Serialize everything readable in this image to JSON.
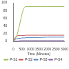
{
  "chart_data": {
    "type": "line",
    "x_label": "Time (Minutes)",
    "x": [
      0,
      100,
      200,
      300,
      400,
      500,
      600,
      700,
      800,
      1000,
      1500,
      2000,
      2500,
      3000
    ],
    "series": [
      {
        "name": "P-S1",
        "color": "#9bbb59",
        "values": [
          0,
          5,
          15,
          30,
          50,
          70,
          85,
          90,
          90,
          90,
          90,
          90,
          90,
          90
        ]
      },
      {
        "name": "P-S2",
        "color": "#c0504d",
        "values": [
          0,
          10,
          14,
          15,
          15,
          15,
          15,
          16,
          16,
          16,
          16,
          16,
          16,
          16
        ]
      },
      {
        "name": "P-S3",
        "color": "#4f81bd",
        "values": [
          0,
          5,
          7,
          8,
          8,
          9,
          9,
          9,
          10,
          10,
          10,
          11,
          11,
          11
        ]
      },
      {
        "name": "P-S4",
        "color": "#8064a2",
        "values": [
          0,
          1,
          1,
          1,
          2,
          2,
          2,
          2,
          2,
          2,
          2,
          2,
          2,
          2
        ]
      }
    ],
    "xlim": [
      0,
      3000
    ],
    "xticks": [
      0,
      500,
      1000,
      1500,
      2000,
      2500,
      3000
    ],
    "ylim": [
      0,
      100
    ],
    "yticks": [
      0,
      20,
      40,
      60,
      80,
      100
    ],
    "grid": false,
    "legend": "bottom"
  }
}
